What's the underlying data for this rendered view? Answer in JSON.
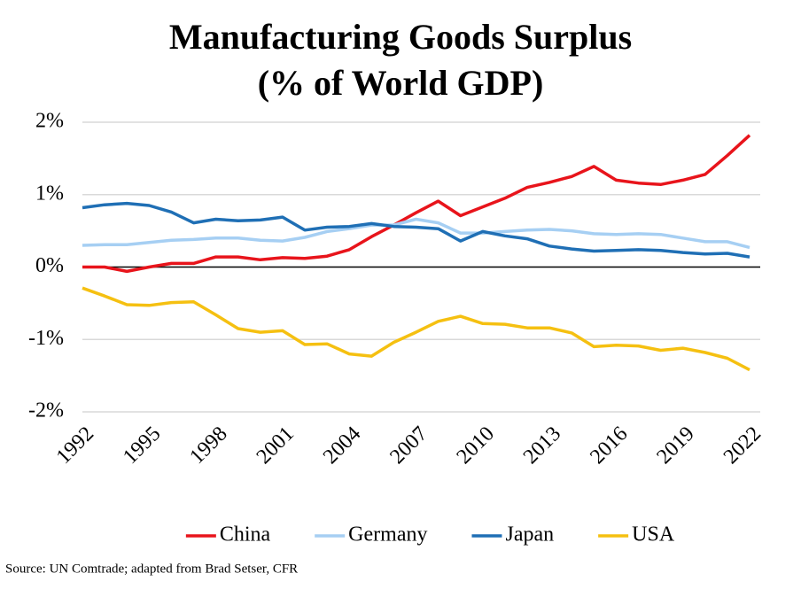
{
  "chart_data": {
    "type": "line",
    "title": "Manufacturing Goods Surplus",
    "subtitle": "(% of World GDP)",
    "source": "Source: UN Comtrade; adapted from Brad Setser, CFR",
    "x": [
      1992,
      1993,
      1994,
      1995,
      1996,
      1997,
      1998,
      1999,
      2000,
      2001,
      2002,
      2003,
      2004,
      2005,
      2006,
      2007,
      2008,
      2009,
      2010,
      2011,
      2012,
      2013,
      2014,
      2015,
      2016,
      2017,
      2018,
      2019,
      2020,
      2021,
      2022
    ],
    "xlim": [
      1992,
      2022
    ],
    "xticks": [
      1992,
      1995,
      1998,
      2001,
      2004,
      2007,
      2010,
      2013,
      2016,
      2019,
      2022
    ],
    "ylim": [
      -2,
      2
    ],
    "yticks": [
      {
        "value": -2,
        "label": "-2%"
      },
      {
        "value": -1,
        "label": "-1%"
      },
      {
        "value": 0,
        "label": "0%"
      },
      {
        "value": 1,
        "label": "1%"
      },
      {
        "value": 2,
        "label": "2%"
      }
    ],
    "grid": true,
    "legend": "bottom",
    "series": [
      {
        "name": "China",
        "color": "#e8141b",
        "values": [
          0.0,
          0.0,
          -0.06,
          0.0,
          0.05,
          0.05,
          0.14,
          0.14,
          0.1,
          0.13,
          0.12,
          0.15,
          0.24,
          0.42,
          0.58,
          0.75,
          0.91,
          0.71,
          0.83,
          0.95,
          1.1,
          1.17,
          1.25,
          1.39,
          1.2,
          1.16,
          1.14,
          1.2,
          1.28,
          1.54,
          1.82
        ]
      },
      {
        "name": "Germany",
        "color": "#a6cff3",
        "values": [
          0.3,
          0.31,
          0.31,
          0.34,
          0.37,
          0.38,
          0.4,
          0.4,
          0.37,
          0.36,
          0.41,
          0.49,
          0.53,
          0.58,
          0.58,
          0.66,
          0.61,
          0.47,
          0.47,
          0.49,
          0.51,
          0.52,
          0.5,
          0.46,
          0.45,
          0.46,
          0.45,
          0.4,
          0.35,
          0.35,
          0.27
        ]
      },
      {
        "name": "Japan",
        "color": "#1f6fb5",
        "values": [
          0.82,
          0.86,
          0.88,
          0.85,
          0.76,
          0.61,
          0.66,
          0.64,
          0.65,
          0.69,
          0.51,
          0.55,
          0.56,
          0.6,
          0.56,
          0.55,
          0.53,
          0.36,
          0.49,
          0.43,
          0.39,
          0.29,
          0.25,
          0.22,
          0.23,
          0.24,
          0.23,
          0.2,
          0.18,
          0.19,
          0.14
        ]
      },
      {
        "name": "USA",
        "color": "#f5c011",
        "values": [
          -0.29,
          -0.4,
          -0.52,
          -0.53,
          -0.49,
          -0.48,
          -0.66,
          -0.85,
          -0.9,
          -0.88,
          -1.07,
          -1.06,
          -1.2,
          -1.23,
          -1.04,
          -0.9,
          -0.75,
          -0.68,
          -0.78,
          -0.79,
          -0.84,
          -0.84,
          -0.91,
          -1.1,
          -1.08,
          -1.09,
          -1.15,
          -1.12,
          -1.18,
          -1.26,
          -1.42
        ]
      }
    ]
  }
}
